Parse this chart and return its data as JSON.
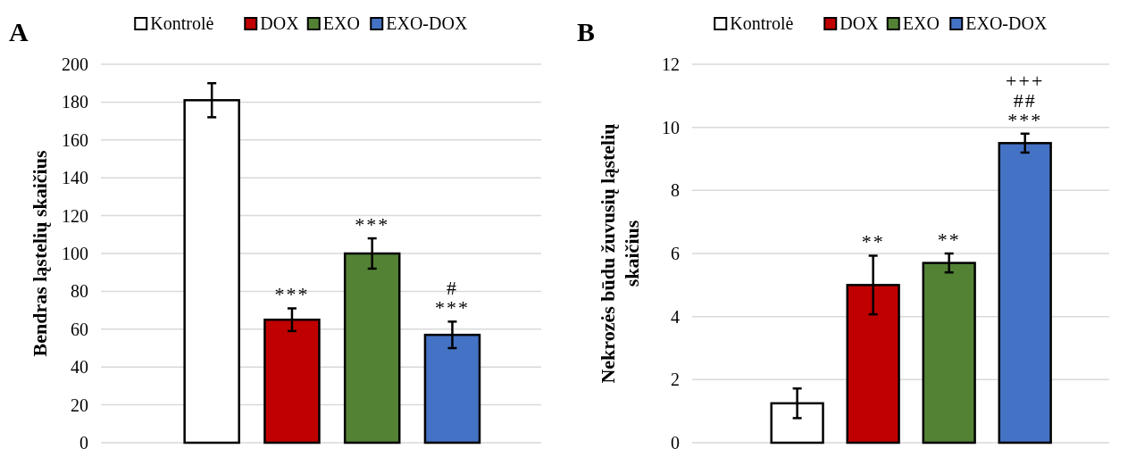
{
  "chart_data": [
    {
      "type": "bar",
      "title": "A",
      "ylabel": "Bendras ląstelių skaičius",
      "categories": [
        null
      ],
      "ylim": [
        0,
        200
      ],
      "yticks": [
        0,
        20,
        40,
        60,
        80,
        100,
        120,
        140,
        160,
        180,
        200
      ],
      "grid": "y",
      "legend": "top",
      "series": [
        {
          "name": "Kontrolė",
          "color": "#ffffff",
          "values": [
            181
          ],
          "errors": [
            9
          ]
        },
        {
          "name": "DOX",
          "color": "#c00000",
          "values": [
            65
          ],
          "errors": [
            6
          ]
        },
        {
          "name": "EXO",
          "color": "#548235",
          "values": [
            100
          ],
          "errors": [
            8
          ]
        },
        {
          "name": "EXO-DOX",
          "color": "#4472c4",
          "values": [
            57
          ],
          "errors": [
            7
          ]
        }
      ],
      "annotations": [
        "***",
        "***",
        "#\n***"
      ]
    },
    {
      "type": "bar",
      "title": "B",
      "ylabel": "Nekrozės būdu žuvusių ląstelių skaičius",
      "categories": [
        null
      ],
      "ylim": [
        0,
        12
      ],
      "yticks": [
        0,
        2,
        4,
        6,
        8,
        10,
        12
      ],
      "grid": "y",
      "legend": "top",
      "series": [
        {
          "name": "Kontrolė",
          "color": "#ffffff",
          "values": [
            1.25
          ],
          "errors": [
            0.47
          ]
        },
        {
          "name": "DOX",
          "color": "#c00000",
          "values": [
            5.0
          ],
          "errors": [
            0.93
          ]
        },
        {
          "name": "EXO",
          "color": "#548235",
          "values": [
            5.7
          ],
          "errors": [
            0.3
          ]
        },
        {
          "name": "EXO-DOX",
          "color": "#4472c4",
          "values": [
            9.5
          ],
          "errors": [
            0.3
          ]
        }
      ],
      "annotations": [
        "**",
        "**",
        "+++\n##\n***"
      ]
    }
  ]
}
